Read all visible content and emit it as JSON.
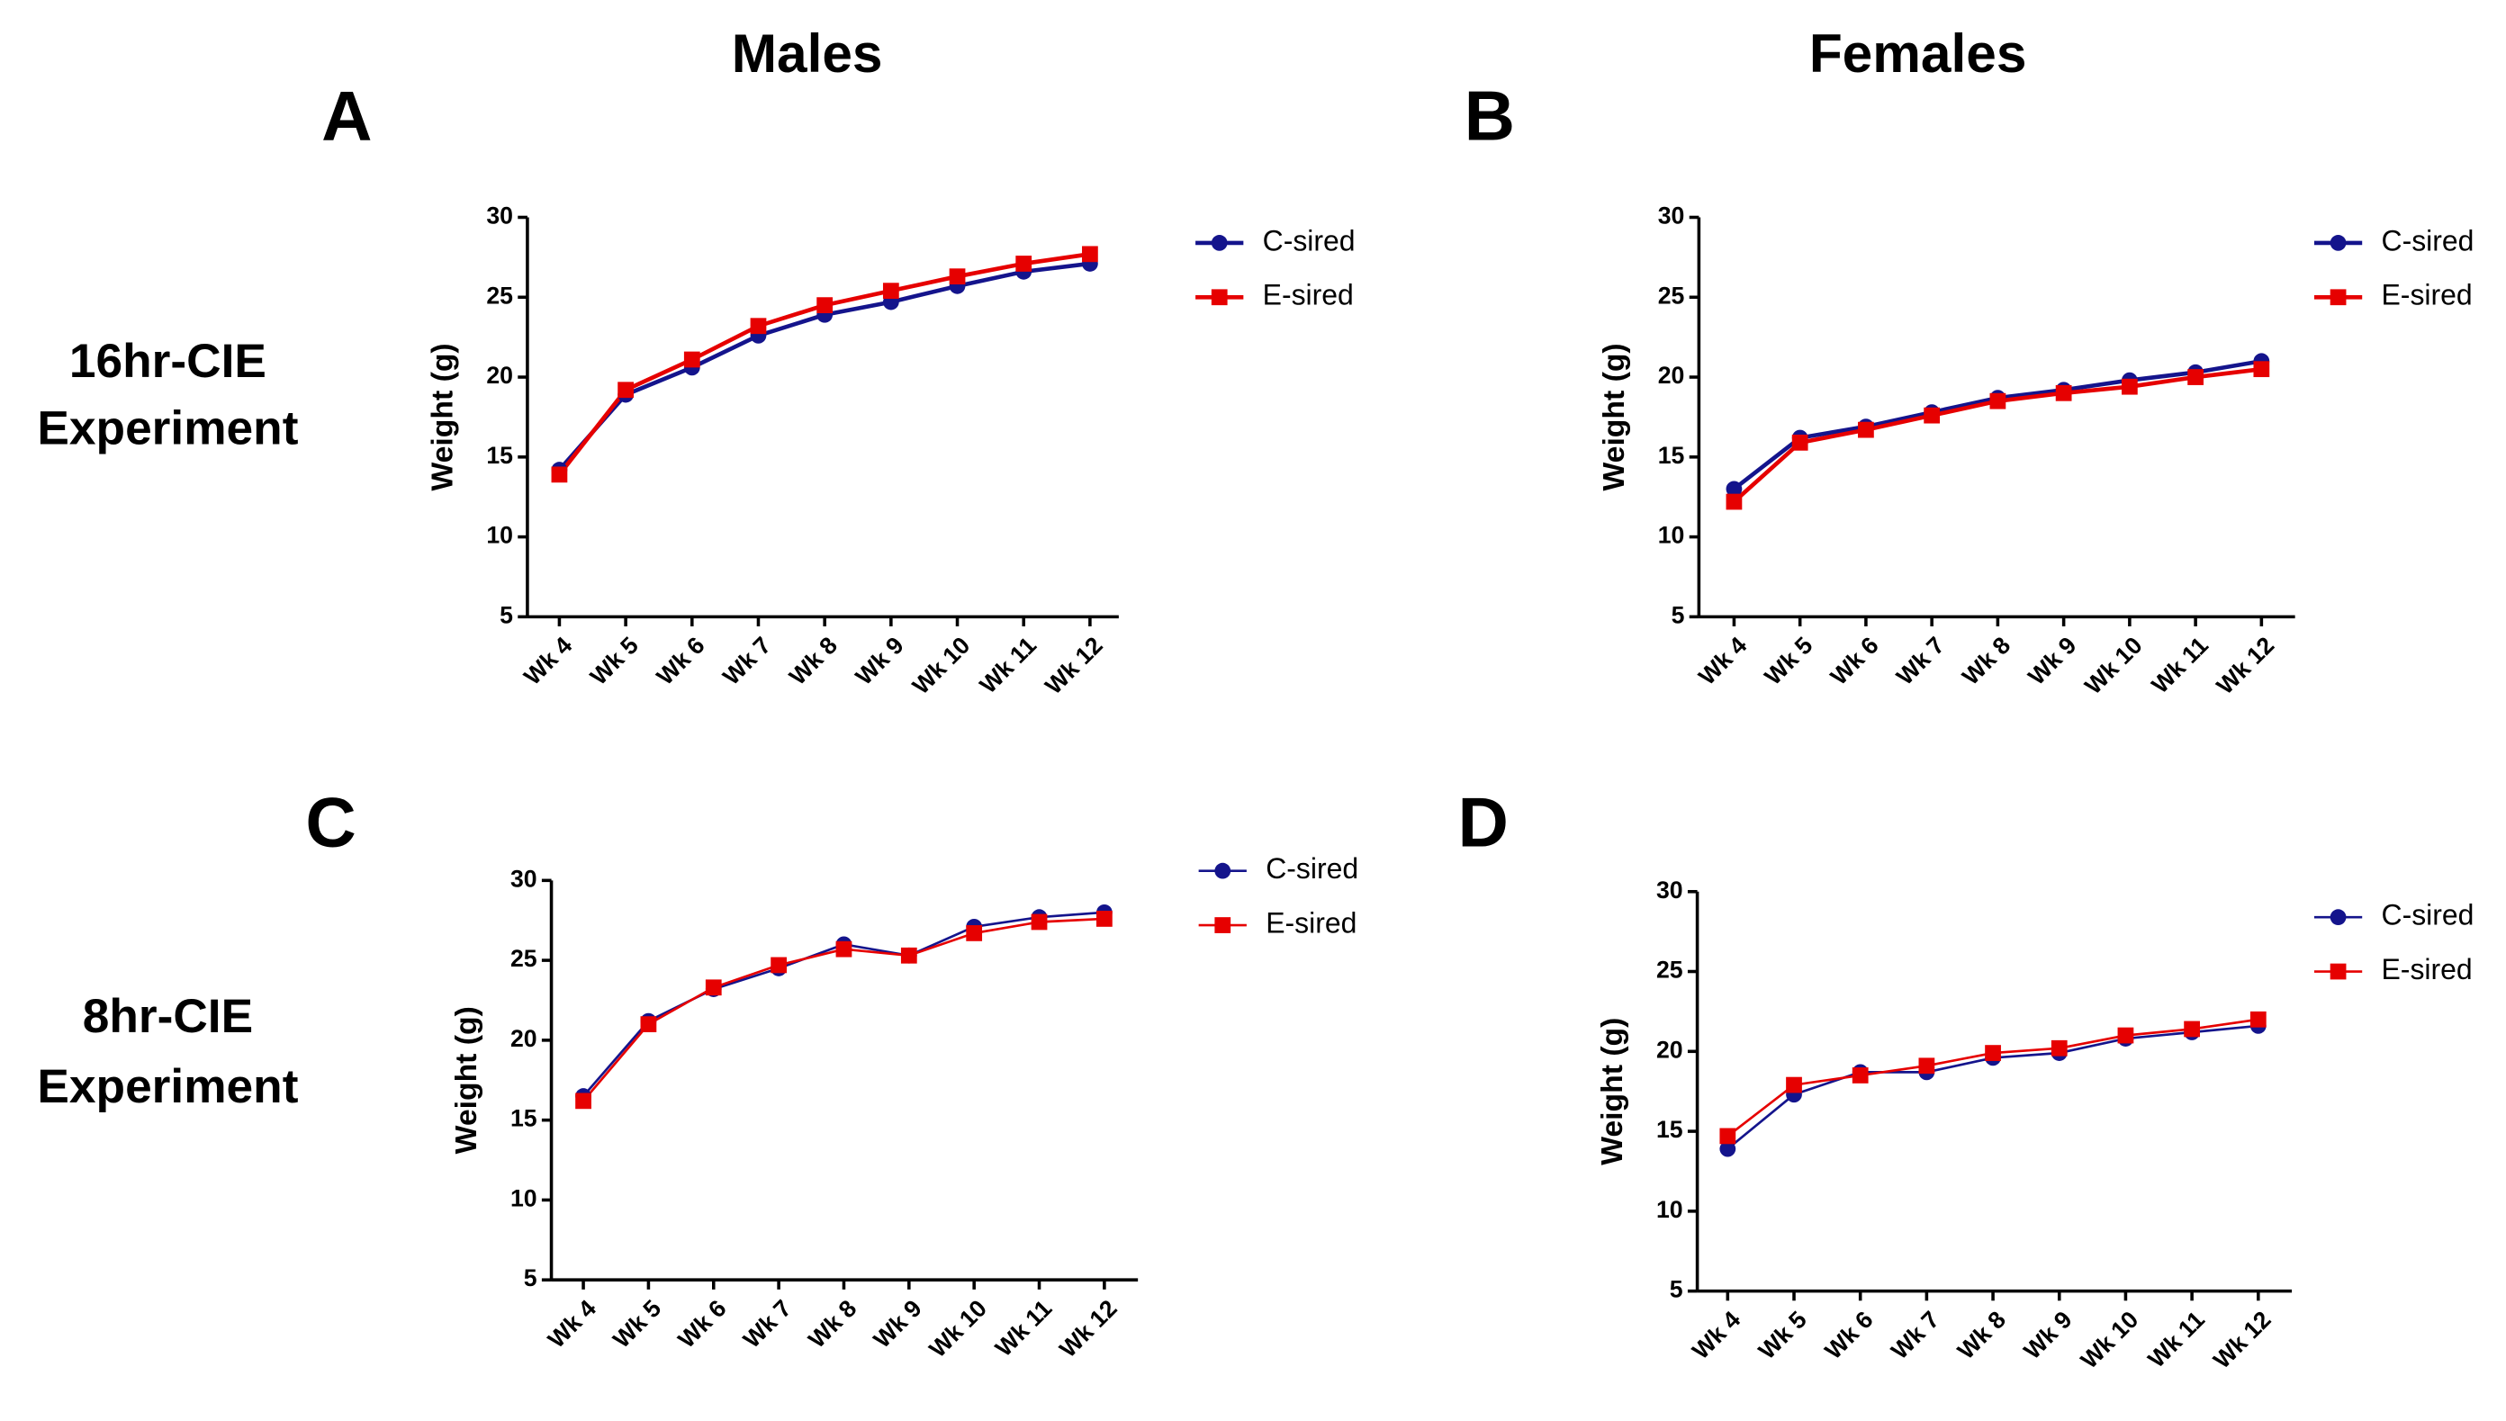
{
  "column_titles": [
    "Males",
    "Females"
  ],
  "row_titles": [
    [
      "16hr-CIE",
      "Experiment"
    ],
    [
      "8hr-CIE",
      "Experiment"
    ]
  ],
  "chart_data": [
    {
      "type": "line",
      "panel_label": "A",
      "y_label": "Weight (g)",
      "categories": [
        "Wk 4",
        "Wk 5",
        "Wk 6",
        "Wk 7",
        "Wk 8",
        "Wk 9",
        "Wk 10",
        "Wk 11",
        "Wk 12"
      ],
      "ylim": [
        5,
        30
      ],
      "yticks": [
        5,
        10,
        15,
        20,
        25,
        30
      ],
      "series": [
        {
          "name": "C-sired",
          "color": "#14148c",
          "marker": "circle",
          "values": [
            14.2,
            18.9,
            20.6,
            22.6,
            23.9,
            24.7,
            25.7,
            26.6,
            27.1
          ]
        },
        {
          "name": "E-sired",
          "color": "#e60000",
          "marker": "square",
          "values": [
            13.9,
            19.2,
            21.1,
            23.2,
            24.5,
            25.4,
            26.3,
            27.1,
            27.7
          ]
        }
      ]
    },
    {
      "type": "line",
      "panel_label": "B",
      "y_label": "Weight (g)",
      "categories": [
        "Wk 4",
        "Wk 5",
        "Wk 6",
        "Wk 7",
        "Wk 8",
        "Wk 9",
        "Wk 10",
        "Wk 11",
        "Wk 12"
      ],
      "ylim": [
        5,
        30
      ],
      "yticks": [
        5,
        10,
        15,
        20,
        25,
        30
      ],
      "series": [
        {
          "name": "C-sired",
          "color": "#14148c",
          "marker": "circle",
          "values": [
            13.0,
            16.2,
            16.9,
            17.8,
            18.7,
            19.2,
            19.8,
            20.3,
            21.0
          ]
        },
        {
          "name": "E-sired",
          "color": "#e60000",
          "marker": "square",
          "values": [
            12.2,
            15.9,
            16.7,
            17.6,
            18.5,
            19.0,
            19.4,
            20.0,
            20.5
          ]
        }
      ]
    },
    {
      "type": "line",
      "panel_label": "C",
      "y_label": "Weight (g)",
      "categories": [
        "Wk 4",
        "Wk 5",
        "Wk 6",
        "Wk 7",
        "Wk 8",
        "Wk 9",
        "Wk 10",
        "Wk 11",
        "Wk 12"
      ],
      "ylim": [
        5,
        30
      ],
      "yticks": [
        5,
        10,
        15,
        20,
        25,
        30
      ],
      "series": [
        {
          "name": "C-sired",
          "color": "#14148c",
          "marker": "circle",
          "values": [
            16.5,
            21.2,
            23.2,
            24.5,
            26.0,
            25.3,
            27.1,
            27.7,
            28.0
          ]
        },
        {
          "name": "E-sired",
          "color": "#e60000",
          "marker": "square",
          "values": [
            16.2,
            21.0,
            23.3,
            24.7,
            25.7,
            25.3,
            26.7,
            27.4,
            27.6
          ]
        }
      ]
    },
    {
      "type": "line",
      "panel_label": "D",
      "y_label": "Weight (g)",
      "categories": [
        "Wk 4",
        "Wk 5",
        "Wk 6",
        "Wk 7",
        "Wk 8",
        "Wk 9",
        "Wk 10",
        "Wk 11",
        "Wk 12"
      ],
      "ylim": [
        5,
        30
      ],
      "yticks": [
        5,
        10,
        15,
        20,
        25,
        30
      ],
      "series": [
        {
          "name": "C-sired",
          "color": "#14148c",
          "marker": "circle",
          "values": [
            13.9,
            17.3,
            18.7,
            18.7,
            19.6,
            19.9,
            20.8,
            21.2,
            21.6
          ]
        },
        {
          "name": "E-sired",
          "color": "#e60000",
          "marker": "square",
          "values": [
            14.7,
            17.9,
            18.5,
            19.1,
            19.9,
            20.2,
            21.0,
            21.4,
            22.0
          ]
        }
      ]
    }
  ]
}
